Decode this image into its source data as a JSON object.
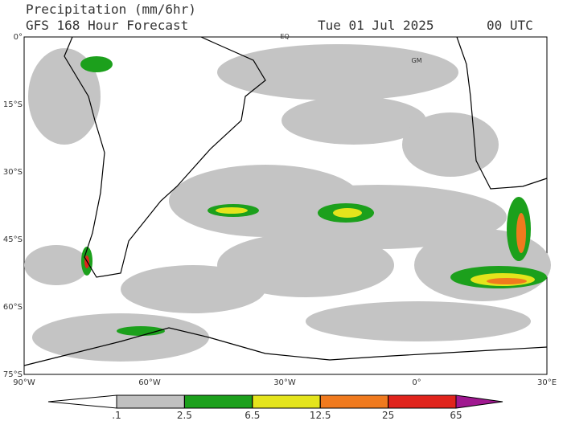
{
  "header": {
    "title": "Precipitation (mm/6hr)",
    "model": "GFS 168 Hour Forecast",
    "date": "Tue 01 Jul 2025",
    "time": "00 UTC"
  },
  "map": {
    "lat_labels": [
      "0°",
      "15°S",
      "30°S",
      "45°S",
      "60°S",
      "75°S"
    ],
    "lon_labels": [
      "90°W",
      "60°W",
      "30°W",
      "0°",
      "30°E"
    ],
    "place_labels": [
      "EQ",
      "GM"
    ]
  },
  "colorbar": {
    "ticks": [
      {
        "value": 0.1,
        "label": ".1"
      },
      2.5,
      6.5,
      12.5,
      25,
      65
    ],
    "colors": [
      "#ffffff",
      "#c0c0c0",
      "#1ca01c",
      "#e4e41c",
      "#f07a1e",
      "#e0241c",
      "#a01890"
    ]
  }
}
